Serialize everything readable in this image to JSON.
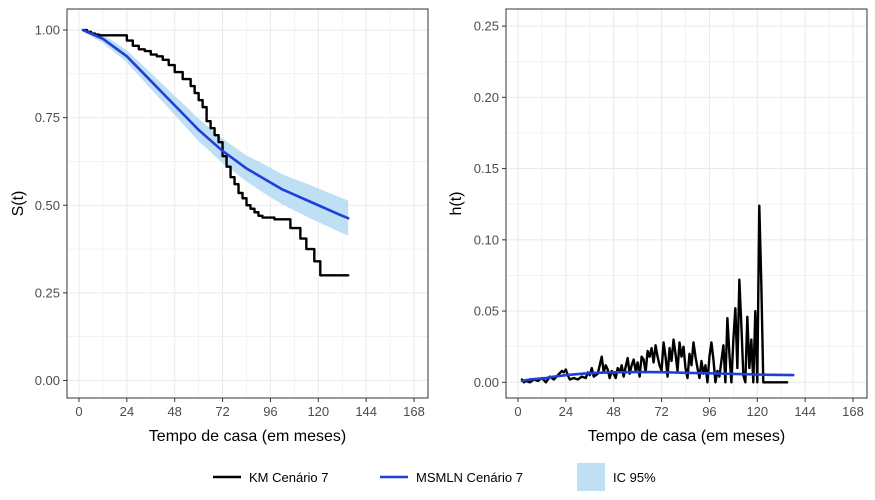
{
  "colors": {
    "km": "#000000",
    "model": "#1f3fd6",
    "band": "#bfdff5",
    "grid": "#ebebeb",
    "panel_border": "#333333"
  },
  "legend": {
    "items": [
      {
        "label": "KM Cenário 7",
        "type": "line",
        "color": "#000000"
      },
      {
        "label": "MSMLN Cenário 7",
        "type": "line",
        "color": "#1f3fd6"
      },
      {
        "label": "IC 95%",
        "type": "fill",
        "color": "#bfdff5"
      }
    ]
  },
  "chart_data": [
    {
      "type": "line",
      "xlabel": "Tempo de casa (em meses)",
      "ylabel": "S(t)",
      "xlim": [
        -6,
        175
      ],
      "ylim": [
        -0.05,
        1.06
      ],
      "xticks": [
        0,
        24,
        48,
        72,
        96,
        120,
        144,
        168
      ],
      "yticks": [
        0.0,
        0.25,
        0.5,
        0.75,
        1.0
      ],
      "ytick_labels": [
        "0.00",
        "0.25",
        "0.50",
        "0.75",
        "1.00"
      ],
      "series": [
        {
          "name": "KM Cenário 7",
          "step": true,
          "color": "#000000",
          "x": [
            2,
            4,
            6,
            8,
            10,
            24,
            27,
            30,
            33,
            36,
            39,
            42,
            45,
            48,
            52,
            56,
            58,
            60,
            62,
            64,
            66,
            68,
            70,
            72,
            74,
            76,
            78,
            80,
            82,
            84,
            86,
            88,
            90,
            92,
            95,
            98,
            106,
            111,
            114,
            118,
            121,
            135
          ],
          "y": [
            1.0,
            0.995,
            0.99,
            0.987,
            0.985,
            0.97,
            0.955,
            0.945,
            0.94,
            0.93,
            0.925,
            0.915,
            0.9,
            0.88,
            0.86,
            0.84,
            0.82,
            0.8,
            0.78,
            0.74,
            0.72,
            0.7,
            0.68,
            0.64,
            0.61,
            0.58,
            0.56,
            0.535,
            0.52,
            0.5,
            0.49,
            0.48,
            0.47,
            0.465,
            0.465,
            0.46,
            0.435,
            0.405,
            0.375,
            0.34,
            0.3,
            0.3
          ]
        },
        {
          "name": "MSMLN Cenário 7",
          "color": "#1f3fd6",
          "x": [
            2,
            6,
            12,
            18,
            24,
            30,
            36,
            42,
            48,
            54,
            60,
            66,
            72,
            78,
            84,
            90,
            96,
            102,
            108,
            114,
            120,
            126,
            132,
            135
          ],
          "y": [
            1.0,
            0.99,
            0.975,
            0.95,
            0.925,
            0.89,
            0.855,
            0.82,
            0.785,
            0.75,
            0.715,
            0.685,
            0.655,
            0.63,
            0.605,
            0.585,
            0.565,
            0.545,
            0.53,
            0.515,
            0.5,
            0.485,
            0.47,
            0.463
          ],
          "lower": [
            0.995,
            0.982,
            0.963,
            0.935,
            0.908,
            0.87,
            0.832,
            0.795,
            0.758,
            0.72,
            0.683,
            0.652,
            0.62,
            0.594,
            0.568,
            0.545,
            0.523,
            0.502,
            0.485,
            0.468,
            0.452,
            0.436,
            0.42,
            0.413
          ],
          "upper": [
            1.0,
            0.998,
            0.987,
            0.965,
            0.942,
            0.91,
            0.878,
            0.845,
            0.812,
            0.78,
            0.747,
            0.718,
            0.69,
            0.666,
            0.642,
            0.625,
            0.607,
            0.588,
            0.575,
            0.562,
            0.548,
            0.534,
            0.52,
            0.513
          ]
        }
      ]
    },
    {
      "type": "line",
      "xlabel": "Tempo de casa (em meses)",
      "ylabel": "h(t)",
      "xlim": [
        -6,
        175
      ],
      "ylim": [
        -0.011,
        0.262
      ],
      "xticks": [
        0,
        24,
        48,
        72,
        96,
        120,
        144,
        168
      ],
      "yticks": [
        0.0,
        0.05,
        0.1,
        0.15,
        0.2,
        0.25
      ],
      "ytick_labels": [
        "0.00",
        "0.05",
        "0.10",
        "0.15",
        "0.20",
        "0.25"
      ],
      "series": [
        {
          "name": "KM Cenário 7",
          "color": "#000000",
          "x": [
            2,
            3,
            4,
            6,
            8,
            10,
            12,
            14,
            16,
            18,
            20,
            22,
            23,
            24,
            25,
            26,
            28,
            30,
            32,
            34,
            35,
            36,
            37,
            38,
            40,
            42,
            43,
            44,
            45,
            46,
            47,
            48,
            49,
            50,
            51,
            52,
            53,
            54,
            55,
            56,
            57,
            58,
            59,
            60,
            61,
            62,
            63,
            64,
            65,
            66,
            67,
            68,
            69,
            70,
            71,
            72,
            73,
            74,
            75,
            76,
            77,
            78,
            79,
            80,
            81,
            82,
            83,
            84,
            85,
            86,
            87,
            88,
            89,
            90,
            91,
            92,
            93,
            94,
            95,
            96,
            97,
            98,
            99,
            100,
            101,
            102,
            103,
            104,
            105,
            106,
            107,
            108,
            109,
            110,
            111,
            112,
            113,
            114,
            115,
            116,
            117,
            118,
            119,
            120,
            121,
            122,
            123,
            124,
            126,
            128,
            130,
            132,
            135
          ],
          "y": [
            0.002,
            0.0,
            0.001,
            0.0,
            0.002,
            0.001,
            0.003,
            0.0,
            0.004,
            0.002,
            0.005,
            0.008,
            0.007,
            0.009,
            0.005,
            0.002,
            0.003,
            0.002,
            0.004,
            0.003,
            0.007,
            0.005,
            0.01,
            0.004,
            0.006,
            0.018,
            0.007,
            0.012,
            0.009,
            0.003,
            0.008,
            0.006,
            0.003,
            0.01,
            0.007,
            0.012,
            0.004,
            0.011,
            0.017,
            0.006,
            0.012,
            0.016,
            0.008,
            0.014,
            0.004,
            0.018,
            0.016,
            0.007,
            0.022,
            0.018,
            0.024,
            0.014,
            0.026,
            0.018,
            0.012,
            0.008,
            0.028,
            0.018,
            0.004,
            0.024,
            0.015,
            0.03,
            0.02,
            0.008,
            0.028,
            0.018,
            0.025,
            0.01,
            0.003,
            0.02,
            0.012,
            0.028,
            0.018,
            0.01,
            0.003,
            0.015,
            0.006,
            0.012,
            0.0,
            0.018,
            0.028,
            0.016,
            0.0,
            0.008,
            0.004,
            0.015,
            0.026,
            0.0,
            0.045,
            0.02,
            0.0,
            0.03,
            0.052,
            0.01,
            0.072,
            0.04,
            0.005,
            0.0,
            0.046,
            0.01,
            0.03,
            0.0,
            0.05,
            0.0,
            0.124,
            0.07,
            0.0,
            0.0,
            0.0,
            0.0,
            0.0,
            0.0,
            0.0
          ]
        },
        {
          "name": "MSMLN Cenário 7",
          "color": "#1f3fd6",
          "x": [
            2,
            6,
            10,
            14,
            18,
            24,
            30,
            36,
            42,
            48,
            54,
            60,
            66,
            72,
            78,
            84,
            90,
            96,
            102,
            108,
            114,
            120,
            126,
            132,
            138
          ],
          "y": [
            0.001,
            0.002,
            0.0025,
            0.003,
            0.004,
            0.005,
            0.0058,
            0.0064,
            0.0068,
            0.007,
            0.0071,
            0.0072,
            0.0072,
            0.0071,
            0.0069,
            0.0067,
            0.0065,
            0.0063,
            0.0061,
            0.0059,
            0.0057,
            0.0055,
            0.0053,
            0.0052,
            0.0051
          ]
        }
      ]
    }
  ]
}
